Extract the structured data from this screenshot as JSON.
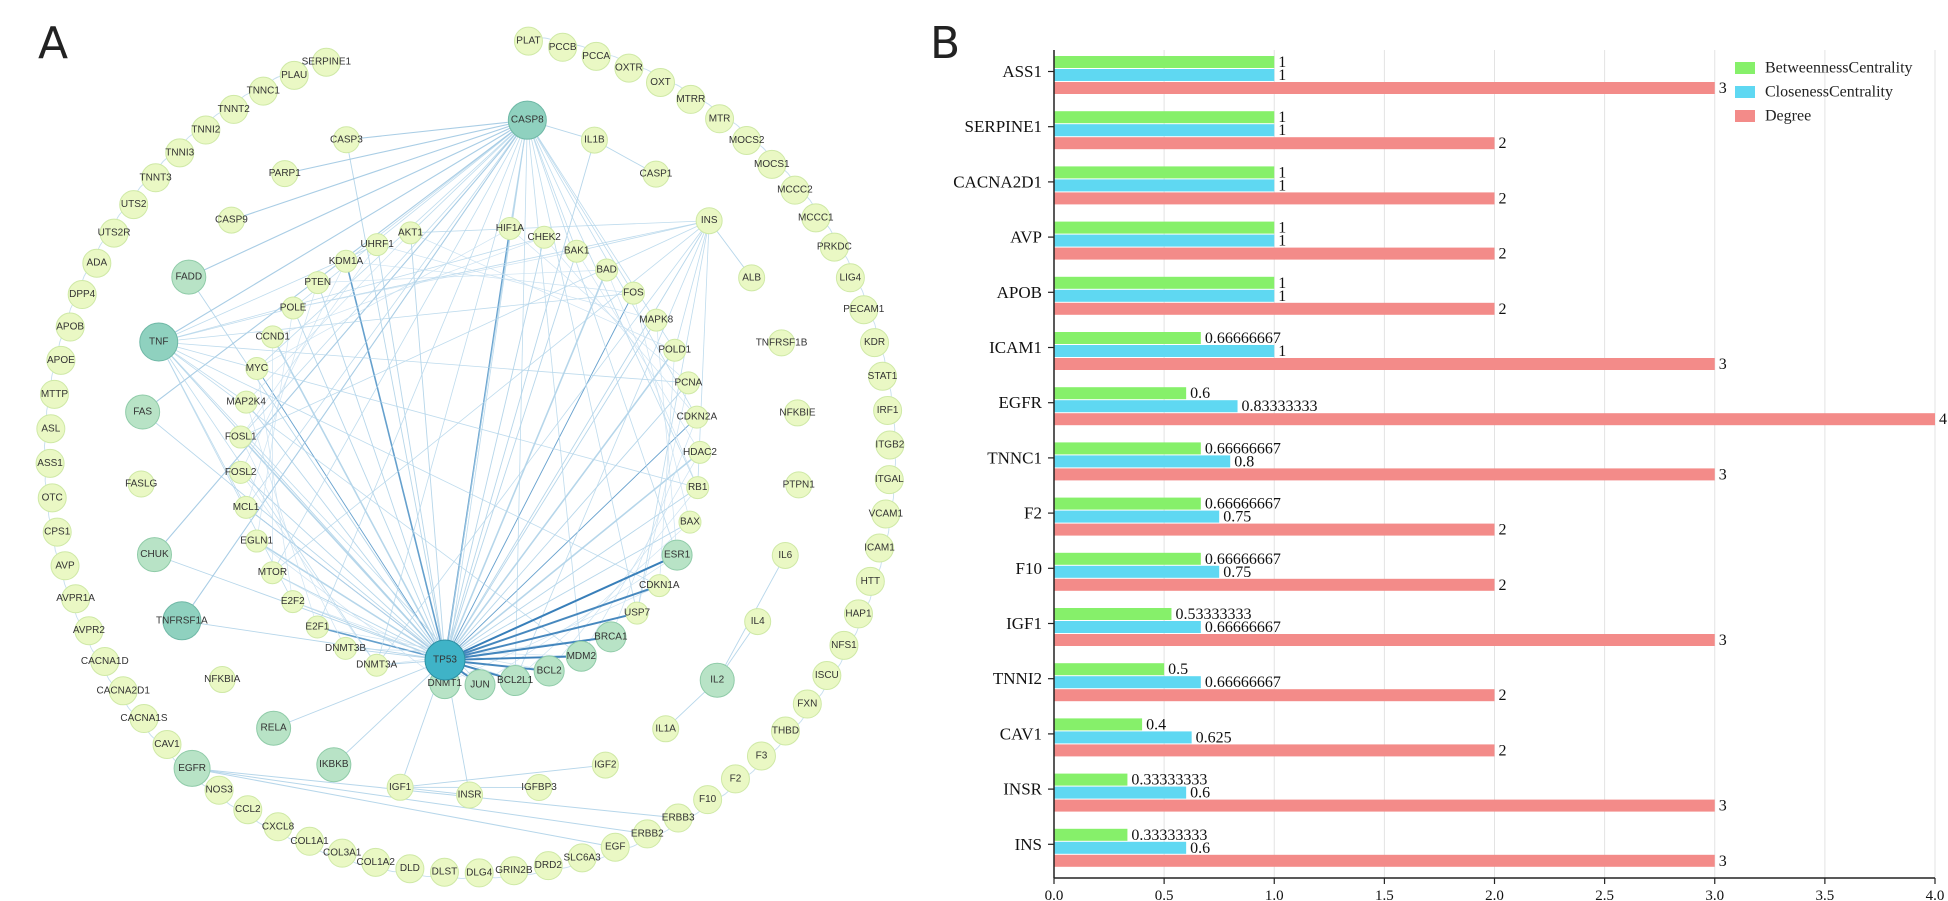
{
  "panels": {
    "a_letter": "A",
    "b_letter": "B"
  },
  "network": {
    "center": "TP53",
    "hubs": [
      "CASP8",
      "TNF",
      "TNFRSF1A",
      "IKBKB",
      "EGFR",
      "CHUK",
      "FADD",
      "FAS",
      "RELA",
      "JUN",
      "MDM2",
      "BCL2",
      "BCL2L1",
      "BRCA1",
      "DNMT1",
      "IL2",
      "ESR1"
    ],
    "outer": [
      "PLAT",
      "PCCB",
      "PCCA",
      "OXTR",
      "OXT",
      "MTRR",
      "MTR",
      "MOCS2",
      "MOCS1",
      "MCCC2",
      "MCCC1",
      "PRKDC",
      "LIG4",
      "PECAM1",
      "KDR",
      "STAT1",
      "IRF1",
      "ITGB2",
      "ITGAL",
      "VCAM1",
      "ICAM1",
      "HTT",
      "HAP1",
      "NFS1",
      "ISCU",
      "FXN",
      "THBD",
      "F3",
      "F2",
      "F10",
      "ERBB3",
      "ERBB2",
      "EGF",
      "SLC6A3",
      "DRD2",
      "GRIN2B",
      "DLG4",
      "DLST",
      "DLD",
      "COL1A2",
      "COL3A1",
      "COL1A1",
      "CXCL8",
      "CCL2",
      "NOS3",
      "EGFR",
      "CAV1",
      "CACNA1S",
      "CACNA2D1",
      "CACNA1D",
      "AVPR2",
      "AVPR1A",
      "AVP",
      "CPS1",
      "OTC",
      "ASS1",
      "ASL",
      "MTTP",
      "APOE",
      "APOB",
      "DPP4",
      "ADA",
      "UTS2R",
      "UTS2",
      "TNNT3",
      "TNNI3",
      "TNNI2",
      "TNNT2",
      "TNNC1",
      "PLAU",
      "SERPINE1"
    ],
    "middle": [
      "CASP8",
      "IL1B",
      "CASP1",
      "INS",
      "ALB",
      "TNFRSF1B",
      "NFKBIE",
      "PTPN1",
      "IL6",
      "IL4",
      "IL2",
      "IL1A",
      "IGF2",
      "IGFBP3",
      "INSR",
      "IGF1",
      "IKBKB",
      "RELA",
      "NFKBIA",
      "TNFRSF1A",
      "CHUK",
      "FASLG",
      "FAS",
      "TNF",
      "FADD",
      "CASP9",
      "PARP1",
      "CASP3"
    ],
    "inner": [
      "HIF1A",
      "CHEK2",
      "BAK1",
      "BAD",
      "FOS",
      "MAPK8",
      "POLD1",
      "PCNA",
      "CDKN2A",
      "HDAC2",
      "RB1",
      "BAX",
      "ESR1",
      "CDKN1A",
      "USP7",
      "BRCA1",
      "MDM2",
      "BCL2",
      "BCL2L1",
      "JUN",
      "DNMT1",
      "TP53",
      "DNMT3A",
      "DNMT3B",
      "E2F1",
      "E2F2",
      "MTOR",
      "EGLN1",
      "MCL1",
      "FOSL2",
      "FOSL1",
      "MAP2K4",
      "MYC",
      "CCND1",
      "POLE",
      "PTEN",
      "KDM1A",
      "UHRF1",
      "AKT1"
    ]
  },
  "chart_data": {
    "type": "bar",
    "orientation": "horizontal",
    "categories": [
      "ASS1",
      "SERPINE1",
      "CACNA2D1",
      "AVP",
      "APOB",
      "ICAM1",
      "EGFR",
      "TNNC1",
      "F2",
      "F10",
      "IGF1",
      "TNNI2",
      "CAV1",
      "INSR",
      "INS"
    ],
    "series": [
      {
        "name": "BetweennessCentrality",
        "color": "#86f06a",
        "values": [
          1,
          1,
          1,
          1,
          1,
          0.66666667,
          0.6,
          0.66666667,
          0.66666667,
          0.66666667,
          0.53333333,
          0.5,
          0.4,
          0.33333333,
          0.33333333
        ],
        "labels": [
          "1",
          "1",
          "1",
          "1",
          "1",
          "0.66666667",
          "0.6",
          "0.66666667",
          "0.66666667",
          "0.66666667",
          "0.53333333",
          "0.5",
          "0.4",
          "0.33333333",
          "0.33333333"
        ]
      },
      {
        "name": "ClosenessCentrality",
        "color": "#5fd8f2",
        "values": [
          1,
          1,
          1,
          1,
          1,
          1,
          0.83333333,
          0.8,
          0.75,
          0.75,
          0.66666667,
          0.66666667,
          0.625,
          0.6,
          0.6
        ],
        "labels": [
          "1",
          "1",
          "1",
          "1",
          "1",
          "1",
          "0.83333333",
          "0.8",
          "0.75",
          "0.75",
          "0.66666667",
          "0.66666667",
          "0.625",
          "0.6",
          "0.6"
        ]
      },
      {
        "name": "Degree",
        "color": "#f38b89",
        "values": [
          3,
          2,
          2,
          2,
          2,
          3,
          4,
          3,
          2,
          2,
          3,
          2,
          2,
          3,
          3
        ],
        "labels": [
          "3",
          "2",
          "2",
          "2",
          "2",
          "3",
          "4",
          "3",
          "2",
          "2",
          "3",
          "2",
          "2",
          "3",
          "3"
        ]
      }
    ],
    "xlim": [
      0,
      4.0
    ],
    "xticks": [
      "0.0",
      "0.5",
      "1.0",
      "1.5",
      "2.0",
      "2.5",
      "3.0",
      "3.5",
      "4.0"
    ],
    "grid": true,
    "legend_position": "top-right"
  }
}
